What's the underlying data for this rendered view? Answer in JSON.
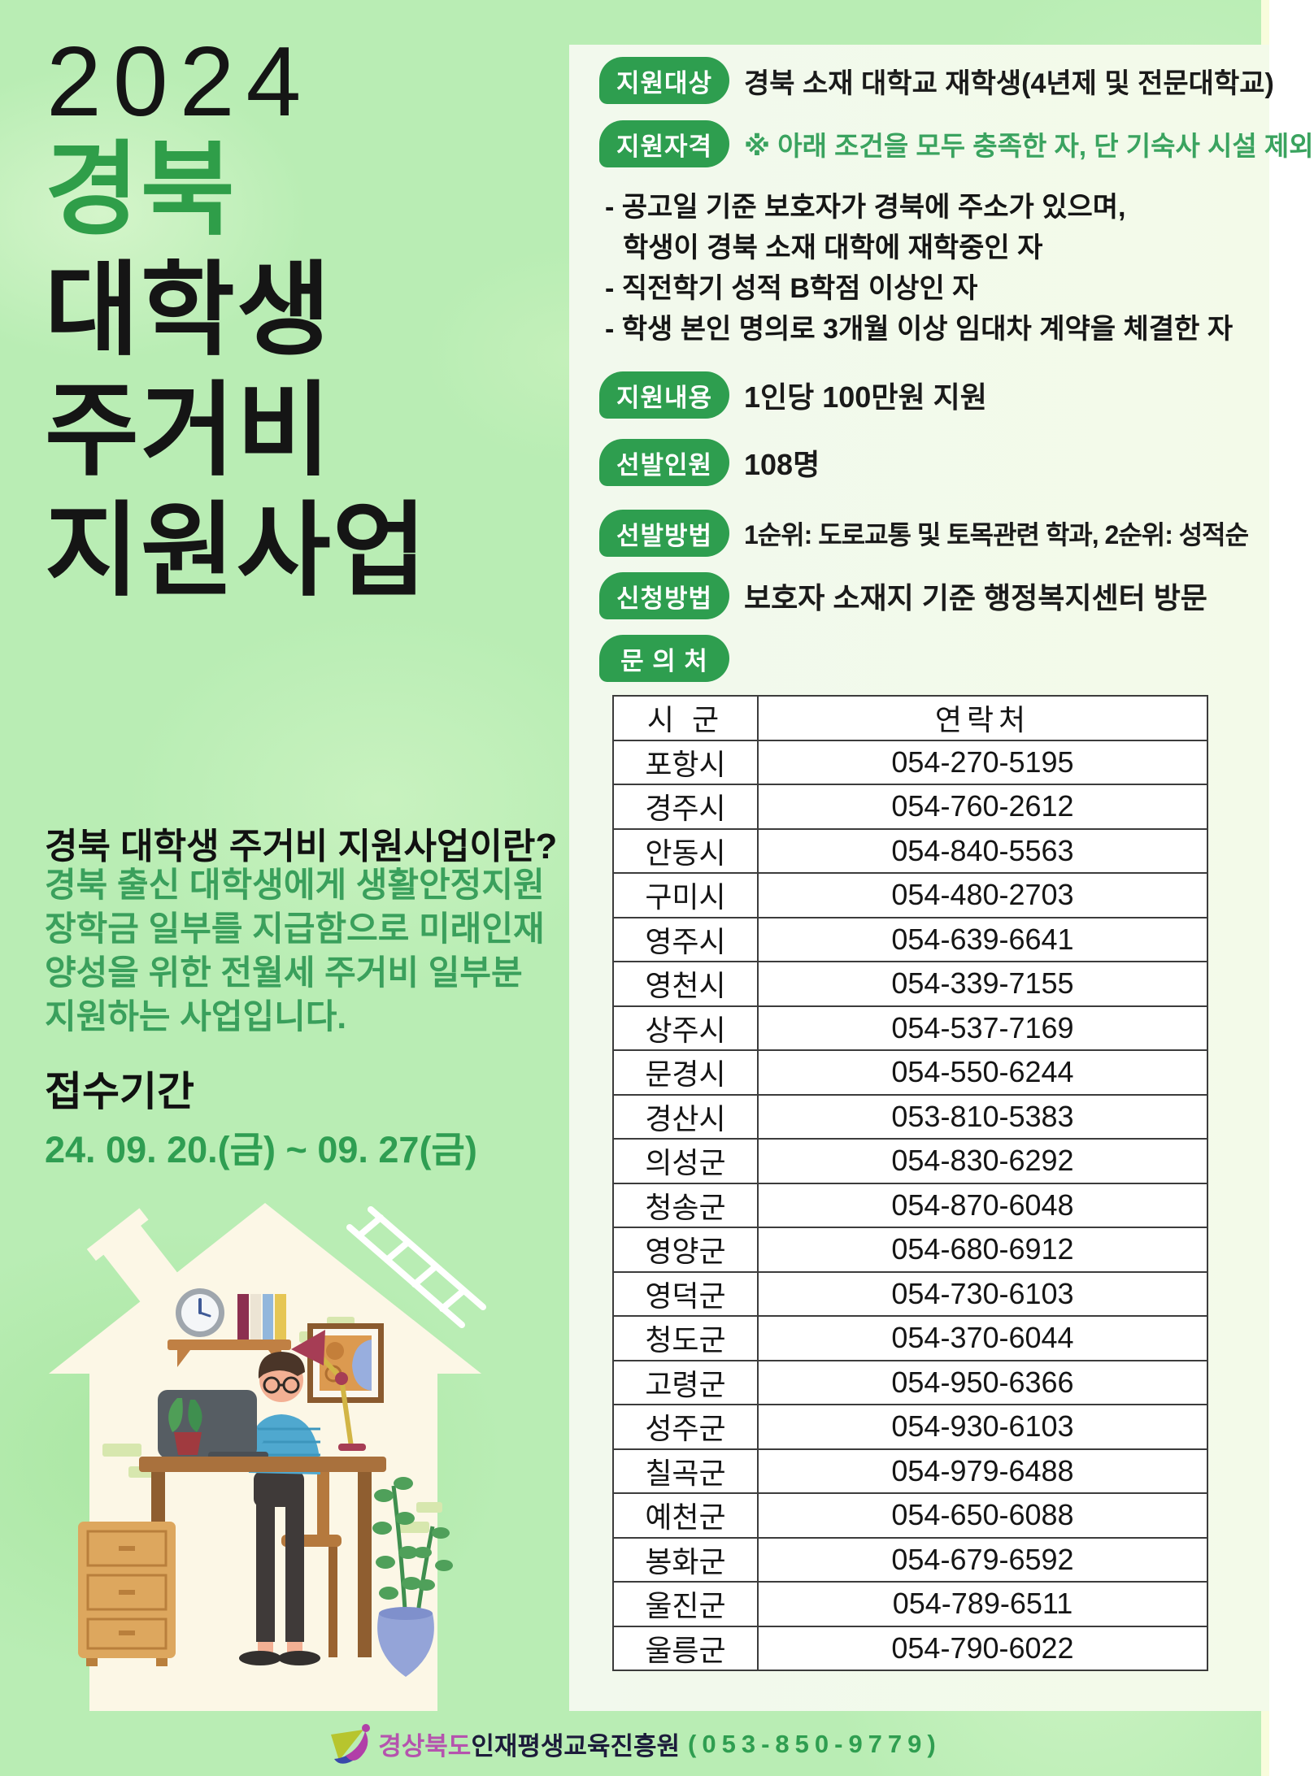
{
  "poster": {
    "year": "2024",
    "title_lines": [
      "경북",
      "대학생",
      "주거비",
      "지원사업"
    ],
    "about_heading": "경북 대학생 주거비 지원사업이란?",
    "about_lines": [
      "경북 출신 대학생에게 생활안정지원",
      "장학금 일부를 지급함으로 미래인재",
      "양성을 위한 전월세 주거비 일부분",
      "지원하는 사업입니다."
    ],
    "period_heading": "접수기간",
    "period_value": "24. 09. 20.(금) ~ 09. 27(금)"
  },
  "sections": {
    "target": {
      "badge": "지원대상",
      "text": "경북 소재 대학교 재학생(4년제 및 전문대학교)"
    },
    "eligibility": {
      "badge": "지원자격",
      "note": "※ 아래 조건을 모두 충족한 자, 단 기숙사 시설 제외",
      "bullets": [
        "- 공고일 기준 보호자가 경북에 주소가 있으며,",
        "학생이 경북 소재 대학에 재학중인 자",
        "- 직전학기 성적 B학점 이상인 자",
        "- 학생 본인 명의로 3개월 이상 임대차 계약을 체결한 자"
      ]
    },
    "benefit": {
      "badge": "지원내용",
      "text": "1인당 100만원 지원"
    },
    "quota": {
      "badge": "선발인원",
      "text": "108명"
    },
    "selection": {
      "badge": "선발방법",
      "text": "1순위: 도로교통 및 토목관련 학과, 2순위: 성적순"
    },
    "apply": {
      "badge": "신청방법",
      "text": "보호자 소재지 기준 행정복지센터 방문"
    },
    "contact_badge": "문 의 처"
  },
  "contacts": {
    "columns": [
      "시 군",
      "연락처"
    ],
    "rows": [
      [
        "포항시",
        "054-270-5195"
      ],
      [
        "경주시",
        "054-760-2612"
      ],
      [
        "안동시",
        "054-840-5563"
      ],
      [
        "구미시",
        "054-480-2703"
      ],
      [
        "영주시",
        "054-639-6641"
      ],
      [
        "영천시",
        "054-339-7155"
      ],
      [
        "상주시",
        "054-537-7169"
      ],
      [
        "문경시",
        "054-550-6244"
      ],
      [
        "경산시",
        "053-810-5383"
      ],
      [
        "의성군",
        "054-830-6292"
      ],
      [
        "청송군",
        "054-870-6048"
      ],
      [
        "영양군",
        "054-680-6912"
      ],
      [
        "영덕군",
        "054-730-6103"
      ],
      [
        "청도군",
        "054-370-6044"
      ],
      [
        "고령군",
        "054-950-6366"
      ],
      [
        "성주군",
        "054-930-6103"
      ],
      [
        "칠곡군",
        "054-979-6488"
      ],
      [
        "예천군",
        "054-650-6088"
      ],
      [
        "봉화군",
        "054-679-6592"
      ],
      [
        "울진군",
        "054-789-6511"
      ],
      [
        "울릉군",
        "054-790-6022"
      ]
    ]
  },
  "footer": {
    "org_prefix": "경상북도",
    "org_name": "인재평생교육진흥원",
    "phone": "(053-850-9779)"
  },
  "colors": {
    "background_green": "#b9edb4",
    "panel": "#f2f9ed",
    "badge_green": "#2e9e4f",
    "title_green": "#2f9e49",
    "body_green_text": "#3aa05c",
    "footer_purple": "#b553ae",
    "footer_navy": "#1c1b3a",
    "footer_phone_green": "#2f9e50"
  }
}
